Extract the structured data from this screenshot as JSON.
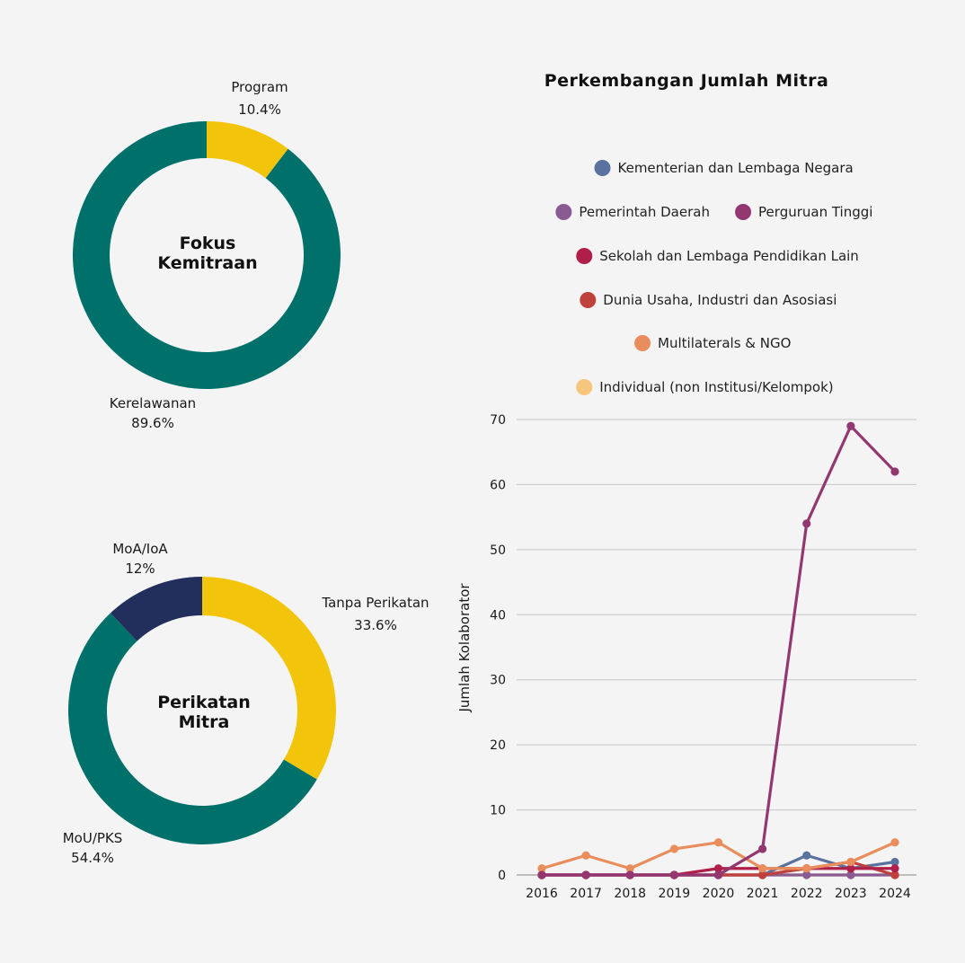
{
  "chart_data": [
    {
      "type": "pie",
      "center_label": [
        "Fokus",
        "Kemitraan"
      ],
      "slices": [
        {
          "label": "Program",
          "value": 10.4,
          "display": "10.4%",
          "color": "#f2c50a"
        },
        {
          "label": "Kerelawanan",
          "value": 89.6,
          "display": "89.6%",
          "color": "#00706b"
        }
      ]
    },
    {
      "type": "pie",
      "center_label": [
        "Perikatan",
        "Mitra"
      ],
      "slices": [
        {
          "label": "Tanpa Perikatan",
          "value": 33.6,
          "display": "33.6%",
          "color": "#f2c50a"
        },
        {
          "label": "MoU/PKS",
          "value": 54.4,
          "display": "54.4%",
          "color": "#00706b"
        },
        {
          "label": "MoA/IoA",
          "value": 12,
          "display": "12%",
          "color": "#222e5c"
        }
      ]
    },
    {
      "type": "line",
      "title": "Perkembangan Jumlah Mitra",
      "xlabel": "",
      "ylabel": "Jumlah Kolaborator",
      "ylim": [
        0,
        70
      ],
      "yticks": [
        0,
        10,
        20,
        30,
        40,
        50,
        60,
        70
      ],
      "grid": true,
      "legend_position": "top",
      "legend_rows": [
        [
          0
        ],
        [
          1,
          2
        ],
        [
          3
        ],
        [
          4
        ],
        [
          5
        ],
        [
          6
        ]
      ],
      "x": [
        "2016",
        "2017",
        "2018",
        "2019",
        "2020",
        "2021",
        "2022",
        "2023",
        "2024"
      ],
      "series": [
        {
          "name": "Kementerian dan Lembaga Negara",
          "color": "#5a72a0",
          "values": [
            0,
            0,
            0,
            0,
            0,
            0,
            3,
            1,
            2
          ]
        },
        {
          "name": "Pemerintah Daerah",
          "color": "#8a5a92",
          "values": [
            0,
            0,
            0,
            0,
            0,
            0,
            0,
            0,
            0
          ]
        },
        {
          "name": "Perguruan Tinggi",
          "color": "#933770",
          "values": [
            0,
            0,
            0,
            0,
            0,
            4,
            54,
            69,
            62
          ]
        },
        {
          "name": "Sekolah dan Lembaga Pendidikan Lain",
          "color": "#b01f4a",
          "values": [
            0,
            0,
            0,
            0,
            1,
            1,
            1,
            1,
            1
          ]
        },
        {
          "name": "Dunia Usaha, Industri dan Asosiasi",
          "color": "#c0413b",
          "values": [
            0,
            0,
            0,
            0,
            0,
            0,
            1,
            2,
            0
          ]
        },
        {
          "name": "Multilaterals & NGO",
          "color": "#e98d5c",
          "values": [
            1,
            3,
            1,
            4,
            5,
            1,
            1,
            2,
            5
          ]
        },
        {
          "name": "Individual (non Institusi/Kelompok)",
          "color": "#f7c67d",
          "values": [
            0,
            0,
            0,
            0,
            0,
            0,
            0,
            0,
            0
          ]
        }
      ]
    }
  ]
}
